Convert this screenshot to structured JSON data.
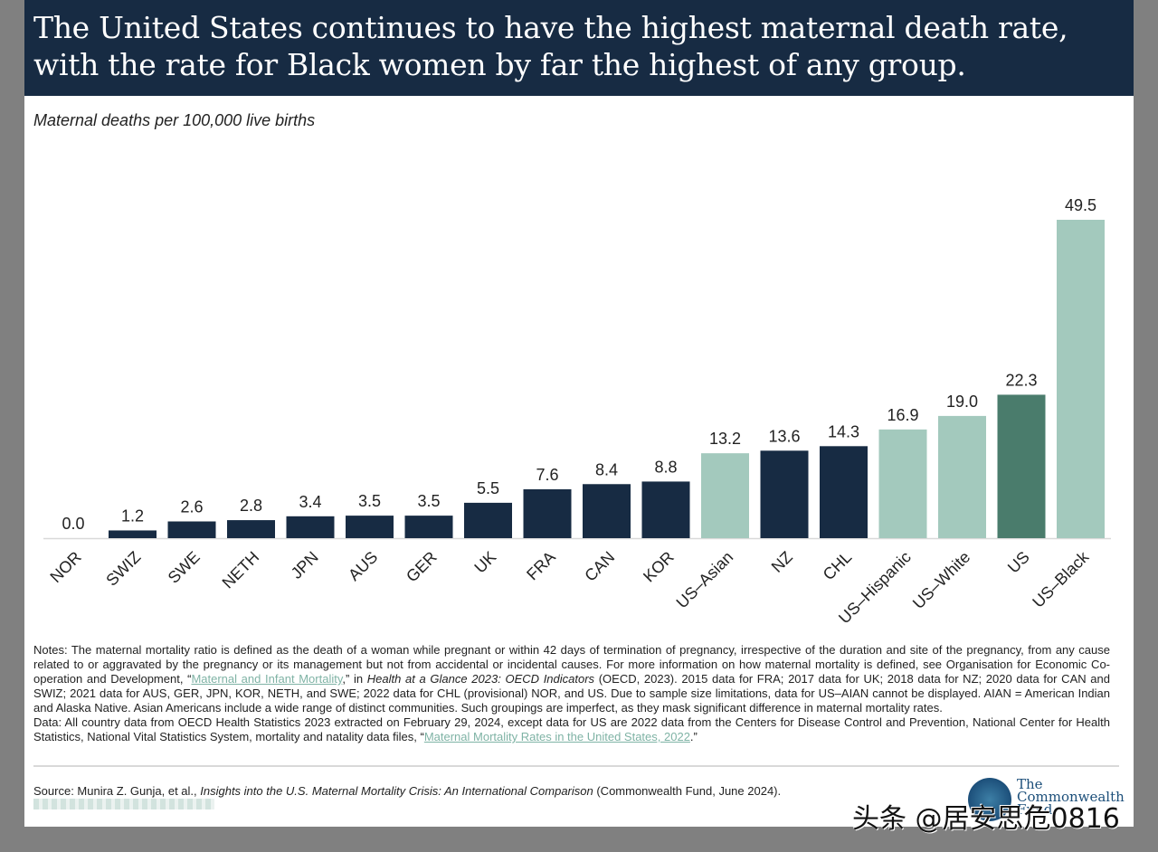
{
  "header": {
    "title": "The United States continues to have the highest maternal death rate, with the rate for Black women by far the highest of any group."
  },
  "subtitle": "Maternal deaths per 100,000 live births",
  "colors": {
    "header_bg": "#172b43",
    "country": "#172b43",
    "us_subgroup": "#a3c9bd",
    "us_total": "#4a7c6c"
  },
  "chart_data": {
    "type": "bar",
    "title": "The United States continues to have the highest maternal death rate, with the rate for Black women by far the highest of any group.",
    "ylabel": "Maternal deaths per 100,000 live births",
    "xlabel": "",
    "ylim": [
      0,
      49.5
    ],
    "grid": false,
    "categories": [
      "NOR",
      "SWIZ",
      "SWE",
      "NETH",
      "JPN",
      "AUS",
      "GER",
      "UK",
      "FRA",
      "CAN",
      "KOR",
      "US–Asian",
      "NZ",
      "CHL",
      "US–Hispanic",
      "US–White",
      "US",
      "US–Black"
    ],
    "values": [
      0.0,
      1.2,
      2.6,
      2.8,
      3.4,
      3.5,
      3.5,
      5.5,
      7.6,
      8.4,
      8.8,
      13.2,
      13.6,
      14.3,
      16.9,
      19.0,
      22.3,
      49.5
    ],
    "labels": [
      "0.0",
      "1.2",
      "2.6",
      "2.8",
      "3.4",
      "3.5",
      "3.5",
      "5.5",
      "7.6",
      "8.4",
      "8.8",
      "13.2",
      "13.6",
      "14.3",
      "16.9",
      "19.0",
      "22.3",
      "49.5"
    ],
    "groups": [
      "country",
      "country",
      "country",
      "country",
      "country",
      "country",
      "country",
      "country",
      "country",
      "country",
      "country",
      "us_subgroup",
      "country",
      "country",
      "us_subgroup",
      "us_subgroup",
      "us_total",
      "us_subgroup"
    ]
  },
  "notes": {
    "p1_a": "Notes: The maternal mortality ratio is defined as the death of a woman while pregnant or within 42 days of termination of pregnancy, irrespective of the duration and site of the pregnancy, from any cause related to or aggravated by the pregnancy or its management but not from accidental or incidental causes. For more information on how maternal mortality is defined, see Organisation for Economic Co-operation and Development, “",
    "p1_link": "Maternal and Infant Mortality",
    "p1_b": ",” in ",
    "p1_italic": "Health at a Glance 2023: OECD Indicators",
    "p1_c": " (OECD, 2023). 2015 data for FRA; 2017 data for UK; 2018 data for NZ; 2020 data for CAN and SWIZ; 2021 data for AUS, GER, JPN, KOR, NETH, and SWE; 2022 data for CHL (provisional) NOR, and US. Due to sample size limitations, data for US–AIAN cannot be displayed. AIAN = American Indian and Alaska Native. Asian Americans include a wide range of distinct communities. Such groupings are imperfect, as they mask significant difference in maternal mortality rates.",
    "p2_a": "Data: All country data from OECD Health Statistics 2023 extracted on February 29, 2024, except data for US are 2022 data from the Centers for Disease Control and Prevention, National Center for Health Statistics, National Vital Statistics System, mortality and natality data files, “",
    "p2_link": "Maternal Mortality Rates in the United States, 2022",
    "p2_b": ".”"
  },
  "source": {
    "a": "Source: Munira Z. Gunja, et al., ",
    "italic": "Insights into the U.S. Maternal Mortality Crisis: An International Comparison",
    "b": " (Commonwealth Fund, June 2024)."
  },
  "logo": {
    "line1": "The",
    "line2": "Commonwealth",
    "line3": "Fund"
  },
  "watermark": "头条 @居安思危0816"
}
